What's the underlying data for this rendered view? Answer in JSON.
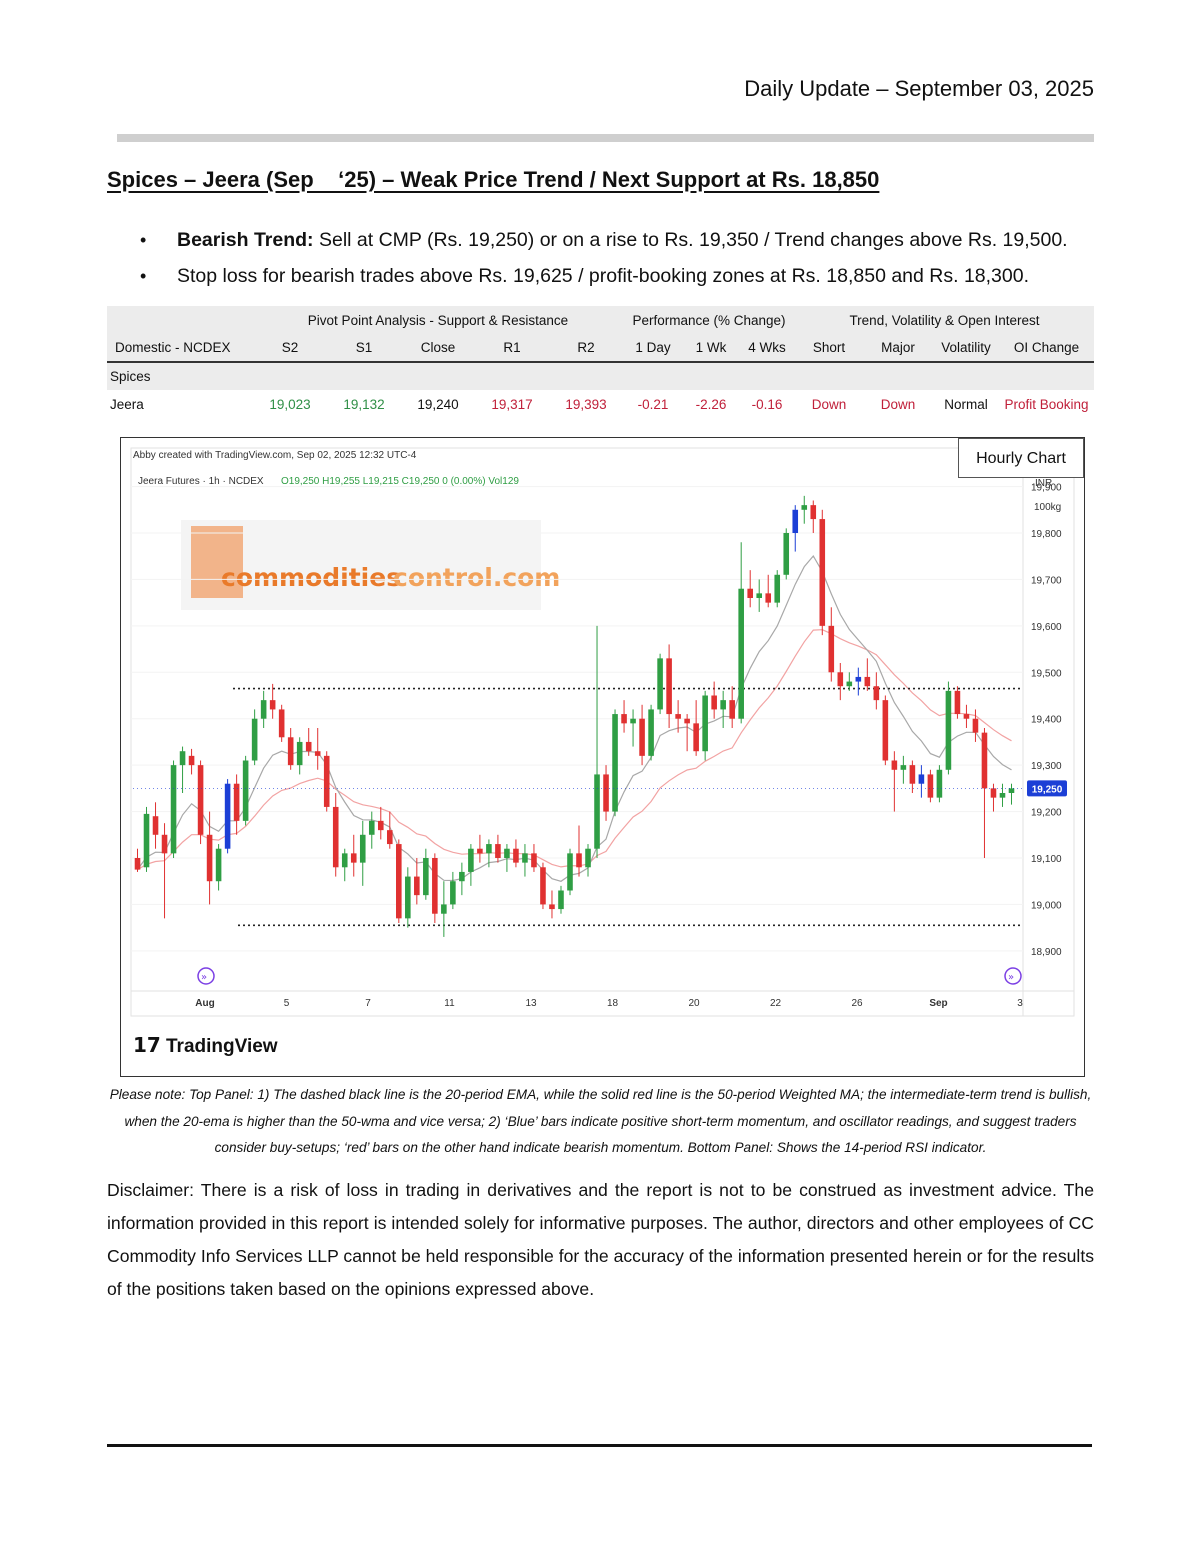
{
  "header": {
    "date": "Daily Update – September 03, 2025"
  },
  "heading": "Spices – Jeera (Sep    ‘25) – Weak Price Trend / Next Support at Rs. 18,850",
  "bullets": [
    {
      "bold": "Bearish Trend:",
      "text": " Sell at CMP (Rs. 19,250) or on a rise to Rs. 19,350 / Trend changes above Rs. 19,500."
    },
    {
      "bold": "",
      "text": "Stop loss for bearish trades above Rs. 19,625 / profit-booking zones at Rs. 18,850 and Rs. 18,300."
    }
  ],
  "table": {
    "groups": [
      "Pivot Point Analysis - Support & Resistance",
      "Performance (% Change)",
      "Trend, Volatility & Open Interest"
    ],
    "headers": [
      "Domestic - NCDEX",
      "S2",
      "S1",
      "Close",
      "R1",
      "R2",
      "1 Day",
      "1 Wk",
      "4 Wks",
      "Short",
      "Major",
      "Volatility",
      "OI Change"
    ],
    "section": "Spices",
    "row": [
      "Jeera",
      "19,023",
      "19,132",
      "19,240",
      "19,317",
      "19,393",
      "-0.21",
      "-2.26",
      "-0.16",
      "Down",
      "Down",
      "Normal",
      "Profit Booking"
    ]
  },
  "chart": {
    "box_label": "Hourly Chart",
    "credit": "Abby created with TradingView.com, Sep 02, 2025 12:32 UTC-4",
    "symbol": "Jeera Futures · 1h · NCDEX",
    "ohlc": "O19,250  H19,255  L19,215  C19,250  0 (0.00%)  Vol129",
    "currency": "INR",
    "unit": "100kg",
    "watermark": {
      "part1": "commodities",
      "part2": "control.com"
    },
    "brand": "TradingView",
    "last_price_label": "19,250",
    "colors": {
      "up": "#2f9e44",
      "down": "#e03131",
      "blue": "#1c3fd6",
      "ema": "#a8a8a8",
      "wma": "#f2a3a3",
      "price_tag": "#1c3fd6"
    }
  },
  "chart_data": {
    "type": "candlestick",
    "title": "",
    "y_ticks": [
      19900,
      19800,
      19700,
      19600,
      19500,
      19400,
      19300,
      19200,
      19100,
      19000,
      18900
    ],
    "y_tick_labels": [
      "19,900",
      "19,800",
      "19,700",
      "19,600",
      "19,500",
      "19,400",
      "19,300",
      "19,200",
      "19,100",
      "19,000",
      "18,900"
    ],
    "x_tick_labels": [
      "Aug",
      "5",
      "7",
      "11",
      "13",
      "18",
      "20",
      "22",
      "26",
      "Sep",
      "3"
    ],
    "ylim": [
      18820,
      19940
    ],
    "last_price": 19250,
    "levels": [
      19465,
      18955
    ],
    "candles": [
      {
        "o": 19100,
        "h": 19120,
        "l": 19070,
        "c": 19075
      },
      {
        "o": 19080,
        "h": 19210,
        "l": 19070,
        "c": 19195
      },
      {
        "o": 19190,
        "h": 19220,
        "l": 19120,
        "c": 19150
      },
      {
        "o": 19150,
        "h": 19175,
        "l": 18970,
        "c": 19110
      },
      {
        "o": 19110,
        "h": 19310,
        "l": 19100,
        "c": 19300
      },
      {
        "o": 19300,
        "h": 19340,
        "l": 19240,
        "c": 19330
      },
      {
        "o": 19320,
        "h": 19335,
        "l": 19280,
        "c": 19300
      },
      {
        "o": 19300,
        "h": 19310,
        "l": 19130,
        "c": 19150
      },
      {
        "o": 19150,
        "h": 19200,
        "l": 19000,
        "c": 19050
      },
      {
        "o": 19050,
        "h": 19130,
        "l": 19030,
        "c": 19120
      },
      {
        "o": 19120,
        "h": 19270,
        "l": 19110,
        "c": 19260
      },
      {
        "o": 19260,
        "h": 19280,
        "l": 19150,
        "c": 19180
      },
      {
        "o": 19180,
        "h": 19320,
        "l": 19170,
        "c": 19310
      },
      {
        "o": 19310,
        "h": 19420,
        "l": 19300,
        "c": 19400
      },
      {
        "o": 19400,
        "h": 19460,
        "l": 19380,
        "c": 19440
      },
      {
        "o": 19440,
        "h": 19475,
        "l": 19400,
        "c": 19420
      },
      {
        "o": 19420,
        "h": 19430,
        "l": 19350,
        "c": 19360
      },
      {
        "o": 19360,
        "h": 19380,
        "l": 19290,
        "c": 19300
      },
      {
        "o": 19300,
        "h": 19360,
        "l": 19280,
        "c": 19350
      },
      {
        "o": 19350,
        "h": 19380,
        "l": 19320,
        "c": 19330
      },
      {
        "o": 19330,
        "h": 19380,
        "l": 19290,
        "c": 19320
      },
      {
        "o": 19320,
        "h": 19330,
        "l": 19200,
        "c": 19210
      },
      {
        "o": 19210,
        "h": 19240,
        "l": 19060,
        "c": 19080
      },
      {
        "o": 19080,
        "h": 19120,
        "l": 19050,
        "c": 19110
      },
      {
        "o": 19110,
        "h": 19150,
        "l": 19060,
        "c": 19090
      },
      {
        "o": 19090,
        "h": 19180,
        "l": 19040,
        "c": 19150
      },
      {
        "o": 19150,
        "h": 19200,
        "l": 19120,
        "c": 19180
      },
      {
        "o": 19180,
        "h": 19210,
        "l": 19140,
        "c": 19160
      },
      {
        "o": 19160,
        "h": 19200,
        "l": 19120,
        "c": 19130
      },
      {
        "o": 19130,
        "h": 19140,
        "l": 18960,
        "c": 18970
      },
      {
        "o": 18970,
        "h": 19080,
        "l": 18950,
        "c": 19060
      },
      {
        "o": 19060,
        "h": 19100,
        "l": 19000,
        "c": 19020
      },
      {
        "o": 19020,
        "h": 19120,
        "l": 19010,
        "c": 19100
      },
      {
        "o": 19100,
        "h": 19110,
        "l": 18960,
        "c": 18980
      },
      {
        "o": 18980,
        "h": 19050,
        "l": 18930,
        "c": 19000
      },
      {
        "o": 19000,
        "h": 19070,
        "l": 18990,
        "c": 19050
      },
      {
        "o": 19050,
        "h": 19090,
        "l": 19020,
        "c": 19070
      },
      {
        "o": 19070,
        "h": 19130,
        "l": 19040,
        "c": 19120
      },
      {
        "o": 19120,
        "h": 19150,
        "l": 19090,
        "c": 19110
      },
      {
        "o": 19110,
        "h": 19140,
        "l": 19080,
        "c": 19130
      },
      {
        "o": 19130,
        "h": 19150,
        "l": 19090,
        "c": 19100
      },
      {
        "o": 19100,
        "h": 19130,
        "l": 19070,
        "c": 19120
      },
      {
        "o": 19120,
        "h": 19140,
        "l": 19080,
        "c": 19090
      },
      {
        "o": 19090,
        "h": 19130,
        "l": 19060,
        "c": 19110
      },
      {
        "o": 19110,
        "h": 19130,
        "l": 19070,
        "c": 19080
      },
      {
        "o": 19080,
        "h": 19090,
        "l": 18990,
        "c": 19000
      },
      {
        "o": 19000,
        "h": 19030,
        "l": 18970,
        "c": 18990
      },
      {
        "o": 18990,
        "h": 19040,
        "l": 18980,
        "c": 19030
      },
      {
        "o": 19030,
        "h": 19120,
        "l": 19020,
        "c": 19110
      },
      {
        "o": 19110,
        "h": 19170,
        "l": 19060,
        "c": 19080
      },
      {
        "o": 19080,
        "h": 19130,
        "l": 19060,
        "c": 19120
      },
      {
        "o": 19120,
        "h": 19600,
        "l": 19100,
        "c": 19280
      },
      {
        "o": 19280,
        "h": 19300,
        "l": 19180,
        "c": 19200
      },
      {
        "o": 19200,
        "h": 19420,
        "l": 19190,
        "c": 19410
      },
      {
        "o": 19410,
        "h": 19440,
        "l": 19370,
        "c": 19390
      },
      {
        "o": 19390,
        "h": 19420,
        "l": 19340,
        "c": 19400
      },
      {
        "o": 19400,
        "h": 19430,
        "l": 19300,
        "c": 19320
      },
      {
        "o": 19320,
        "h": 19430,
        "l": 19310,
        "c": 19420
      },
      {
        "o": 19420,
        "h": 19540,
        "l": 19410,
        "c": 19530
      },
      {
        "o": 19530,
        "h": 19560,
        "l": 19380,
        "c": 19410
      },
      {
        "o": 19410,
        "h": 19440,
        "l": 19370,
        "c": 19400
      },
      {
        "o": 19400,
        "h": 19410,
        "l": 19330,
        "c": 19390
      },
      {
        "o": 19390,
        "h": 19440,
        "l": 19320,
        "c": 19330
      },
      {
        "o": 19330,
        "h": 19460,
        "l": 19310,
        "c": 19450
      },
      {
        "o": 19450,
        "h": 19480,
        "l": 19400,
        "c": 19420
      },
      {
        "o": 19420,
        "h": 19460,
        "l": 19380,
        "c": 19440
      },
      {
        "o": 19440,
        "h": 19470,
        "l": 19380,
        "c": 19400
      },
      {
        "o": 19400,
        "h": 19780,
        "l": 19390,
        "c": 19680
      },
      {
        "o": 19680,
        "h": 19720,
        "l": 19640,
        "c": 19660
      },
      {
        "o": 19660,
        "h": 19700,
        "l": 19630,
        "c": 19670
      },
      {
        "o": 19670,
        "h": 19710,
        "l": 19640,
        "c": 19650
      },
      {
        "o": 19650,
        "h": 19720,
        "l": 19640,
        "c": 19710
      },
      {
        "o": 19710,
        "h": 19810,
        "l": 19700,
        "c": 19800
      },
      {
        "o": 19800,
        "h": 19860,
        "l": 19760,
        "c": 19850
      },
      {
        "o": 19850,
        "h": 19880,
        "l": 19820,
        "c": 19860
      },
      {
        "o": 19860,
        "h": 19870,
        "l": 19800,
        "c": 19830
      },
      {
        "o": 19830,
        "h": 19850,
        "l": 19580,
        "c": 19600
      },
      {
        "o": 19600,
        "h": 19640,
        "l": 19480,
        "c": 19500
      },
      {
        "o": 19500,
        "h": 19520,
        "l": 19440,
        "c": 19470
      },
      {
        "o": 19470,
        "h": 19500,
        "l": 19460,
        "c": 19480
      },
      {
        "o": 19480,
        "h": 19510,
        "l": 19450,
        "c": 19490
      },
      {
        "o": 19490,
        "h": 19530,
        "l": 19460,
        "c": 19470
      },
      {
        "o": 19470,
        "h": 19500,
        "l": 19420,
        "c": 19440
      },
      {
        "o": 19440,
        "h": 19450,
        "l": 19300,
        "c": 19310
      },
      {
        "o": 19310,
        "h": 19330,
        "l": 19200,
        "c": 19290
      },
      {
        "o": 19290,
        "h": 19320,
        "l": 19260,
        "c": 19300
      },
      {
        "o": 19300,
        "h": 19310,
        "l": 19240,
        "c": 19260
      },
      {
        "o": 19260,
        "h": 19300,
        "l": 19230,
        "c": 19280
      },
      {
        "o": 19280,
        "h": 19290,
        "l": 19220,
        "c": 19230
      },
      {
        "o": 19230,
        "h": 19300,
        "l": 19220,
        "c": 19290
      },
      {
        "o": 19290,
        "h": 19480,
        "l": 19280,
        "c": 19460
      },
      {
        "o": 19460,
        "h": 19470,
        "l": 19400,
        "c": 19410
      },
      {
        "o": 19410,
        "h": 19430,
        "l": 19380,
        "c": 19400
      },
      {
        "o": 19400,
        "h": 19420,
        "l": 19350,
        "c": 19370
      },
      {
        "o": 19370,
        "h": 19380,
        "l": 19100,
        "c": 19250
      },
      {
        "o": 19250,
        "h": 19260,
        "l": 19200,
        "c": 19230
      },
      {
        "o": 19230,
        "h": 19260,
        "l": 19210,
        "c": 19240
      },
      {
        "o": 19240,
        "h": 19260,
        "l": 19215,
        "c": 19250
      }
    ]
  },
  "note": "Please note: Top Panel: 1) The dashed black line is the 20-period EMA, while the solid red line is the 50-period Weighted MA; the intermediate-term trend is bullish, when the 20-ema is higher than the 50-wma and vice versa; 2)    ‘Blue’    bars indicate positive short-term momentum, and oscillator readings, and suggest traders consider buy-setups;    ‘red’    bars on the other hand indicate bearish momentum. Bottom Panel: Shows the 14-period RSI indicator.",
  "disclaimer": "Disclaimer: There is a risk of loss in trading in derivatives and the report is not to be construed as investment advice. The information provided in this report is intended solely for informative purposes. The author, directors and other employees of CC Commodity Info Services LLP cannot be held responsible for the accuracy of the information presented herein or for the results of the positions taken based on the opinions expressed above."
}
